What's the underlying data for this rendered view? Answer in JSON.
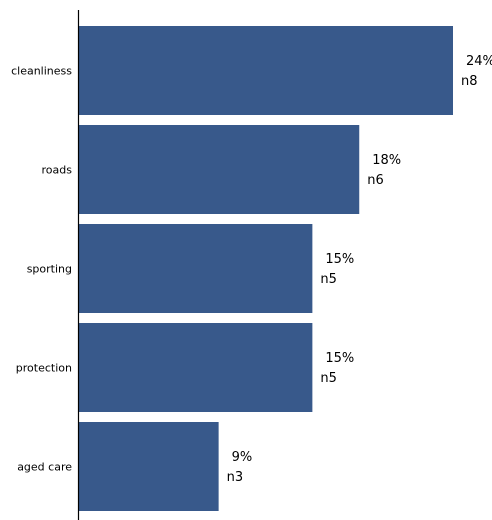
{
  "colors": {
    "bar": "#38598b",
    "axis": "#000000",
    "text": "#000000"
  },
  "chart_data": {
    "type": "bar",
    "orientation": "horizontal",
    "title": "",
    "xlabel": "",
    "ylabel": "",
    "grid": false,
    "legend": "none",
    "xlim": [
      0,
      24
    ],
    "categories": [
      "cleanliness",
      "roads",
      "sporting",
      "protection",
      "aged care"
    ],
    "values": [
      24,
      18,
      15,
      15,
      9
    ],
    "percent_labels": [
      "24%",
      "18%",
      "15%",
      "15%",
      "9%"
    ],
    "count_labels": [
      "n8",
      "n6",
      "n5",
      "n5",
      "n3"
    ]
  }
}
